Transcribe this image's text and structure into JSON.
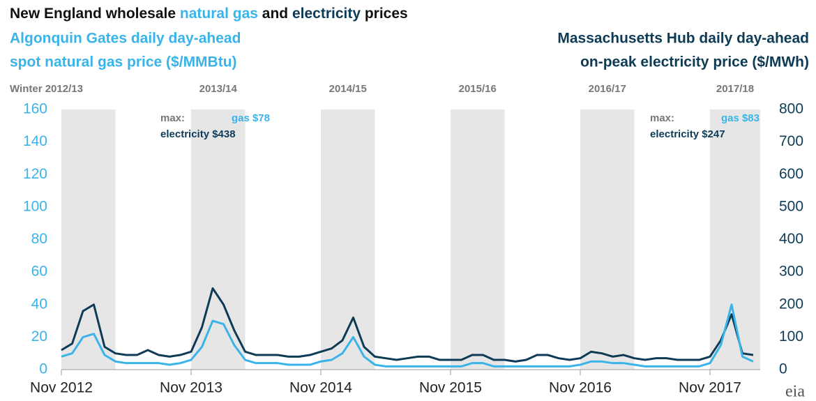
{
  "chart_data": {
    "type": "line",
    "title_parts": [
      "New England wholesale ",
      "natural gas",
      " and ",
      "electricity",
      " prices"
    ],
    "left_axis_label": [
      "Algonquin Gates daily day-ahead",
      "spot natural gas price ($/MMBtu)"
    ],
    "right_axis_label": [
      "Massachusetts Hub daily day-ahead",
      "on-peak electricity price ($/MWh)"
    ],
    "winter_labels": [
      "Winter 2012/13",
      "2013/14",
      "2014/15",
      "2015/16",
      "2016/17",
      "2017/18"
    ],
    "categories": [
      "Nov 2012",
      null,
      null,
      null,
      null,
      null,
      null,
      null,
      null,
      null,
      null,
      null,
      "Nov 2013",
      null,
      null,
      null,
      null,
      null,
      null,
      null,
      null,
      null,
      null,
      null,
      "Nov 2014",
      null,
      null,
      null,
      null,
      null,
      null,
      null,
      null,
      null,
      null,
      null,
      "Nov 2015",
      null,
      null,
      null,
      null,
      null,
      null,
      null,
      null,
      null,
      null,
      null,
      "Nov 2016",
      null,
      null,
      null,
      null,
      null,
      null,
      null,
      null,
      null,
      null,
      null,
      "Nov 2017",
      null,
      null,
      null,
      null
    ],
    "series": [
      {
        "name": "natural gas",
        "color": "#3ab4e8",
        "axis": "y",
        "values": [
          8,
          10,
          20,
          22,
          9,
          5,
          4,
          4,
          4,
          4,
          3,
          4,
          6,
          14,
          30,
          28,
          15,
          6,
          4,
          4,
          4,
          3,
          3,
          3,
          5,
          6,
          10,
          20,
          8,
          3,
          2,
          2,
          2,
          2,
          2,
          2,
          2,
          2,
          4,
          4,
          2,
          2,
          2,
          2,
          2,
          2,
          2,
          2,
          3,
          5,
          5,
          4,
          4,
          3,
          2,
          2,
          2,
          2,
          2,
          2,
          4,
          15,
          40,
          8,
          5
        ]
      },
      {
        "name": "electricity",
        "color": "#0d3b55",
        "axis": "y2",
        "values": [
          60,
          80,
          180,
          200,
          70,
          50,
          45,
          45,
          60,
          45,
          40,
          45,
          55,
          130,
          250,
          200,
          120,
          55,
          45,
          45,
          45,
          40,
          40,
          45,
          55,
          65,
          90,
          160,
          70,
          40,
          35,
          30,
          35,
          40,
          40,
          30,
          30,
          30,
          45,
          45,
          30,
          30,
          25,
          30,
          45,
          45,
          35,
          30,
          35,
          55,
          50,
          40,
          45,
          35,
          30,
          35,
          35,
          30,
          30,
          30,
          40,
          90,
          170,
          50,
          45
        ]
      }
    ],
    "ylim": [
      0,
      160
    ],
    "yticks": [
      0,
      20,
      40,
      60,
      80,
      100,
      120,
      140,
      160
    ],
    "y2lim": [
      0,
      800
    ],
    "y2ticks": [
      0,
      100,
      200,
      300,
      400,
      500,
      600,
      700,
      800
    ],
    "annotations": [
      {
        "label": "max:",
        "gas": "gas $78",
        "electricity": "electricity $438"
      },
      {
        "label": "max:",
        "gas": "gas $83",
        "electricity": "electricity $247"
      }
    ],
    "logo": "eia"
  }
}
